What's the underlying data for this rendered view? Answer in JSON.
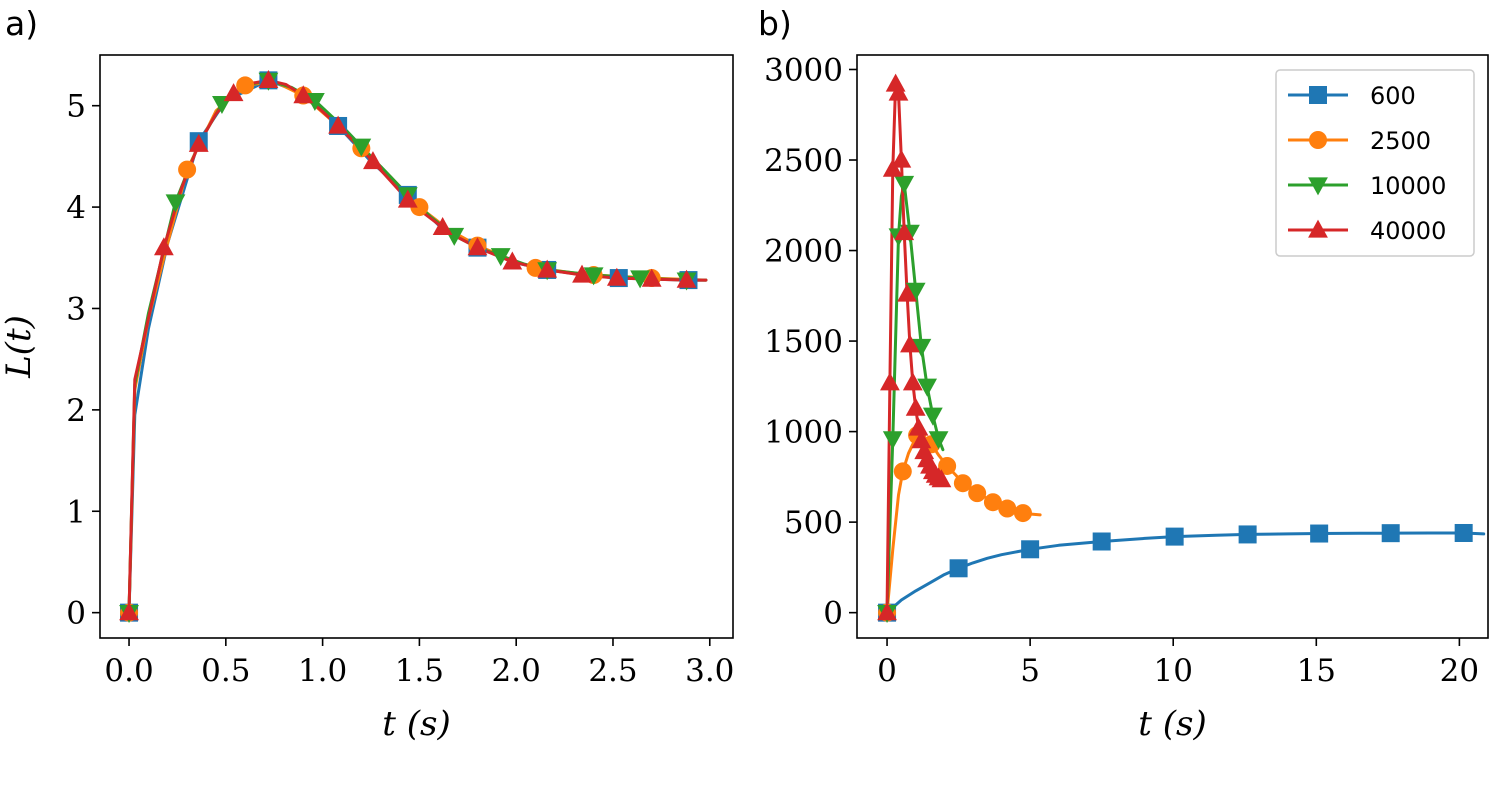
{
  "chart_data": [
    {
      "panel": "a)",
      "type": "line",
      "xlabel": "t (s)",
      "ylabel": "L(t)",
      "xlim": [
        -0.15,
        3.12
      ],
      "ylim": [
        -0.25,
        5.5
      ],
      "xticks": [
        0.0,
        0.5,
        1.0,
        1.5,
        2.0,
        2.5,
        3.0
      ],
      "xtick_labels": [
        "0.0",
        "0.5",
        "1.0",
        "1.5",
        "2.0",
        "2.5",
        "3.0"
      ],
      "yticks": [
        0,
        1,
        2,
        3,
        4,
        5
      ],
      "ytick_labels": [
        "0",
        "1",
        "2",
        "3",
        "4",
        "5"
      ],
      "grid": false,
      "series": [
        {
          "name": "600",
          "color": "#1f77b4",
          "marker": "square",
          "x": [
            0.0,
            0.36,
            0.72,
            1.08,
            1.44,
            1.8,
            2.16,
            2.53,
            2.89
          ],
          "y": [
            0.0,
            4.65,
            5.25,
            4.8,
            4.12,
            3.6,
            3.38,
            3.3,
            3.28
          ],
          "line_x": [
            0.0,
            0.03,
            0.1,
            0.2,
            0.36,
            0.5,
            0.72,
            0.9,
            1.08,
            1.25,
            1.44,
            1.6,
            1.8,
            2.0,
            2.16,
            2.35,
            2.53,
            2.7,
            2.89,
            2.98
          ],
          "line_y": [
            0.0,
            1.95,
            2.8,
            3.65,
            4.65,
            5.05,
            5.25,
            5.12,
            4.8,
            4.45,
            4.12,
            3.82,
            3.6,
            3.45,
            3.38,
            3.33,
            3.3,
            3.29,
            3.28,
            3.28
          ]
        },
        {
          "name": "2500",
          "color": "#ff7f0e",
          "marker": "circle",
          "x": [
            0.0,
            0.3,
            0.6,
            0.9,
            1.2,
            1.5,
            1.8,
            2.1,
            2.4,
            2.7
          ],
          "y": [
            0.0,
            4.37,
            5.2,
            5.1,
            4.58,
            4.0,
            3.62,
            3.4,
            3.33,
            3.3
          ],
          "line_x": [
            0.0,
            0.03,
            0.1,
            0.2,
            0.3,
            0.45,
            0.6,
            0.75,
            0.9,
            1.05,
            1.2,
            1.35,
            1.5,
            1.65,
            1.8,
            2.0,
            2.1,
            2.3,
            2.4,
            2.6,
            2.7,
            2.98
          ],
          "line_y": [
            0.0,
            2.2,
            2.9,
            3.65,
            4.37,
            4.95,
            5.2,
            5.24,
            5.1,
            4.85,
            4.58,
            4.3,
            4.0,
            3.78,
            3.62,
            3.46,
            3.4,
            3.35,
            3.33,
            3.31,
            3.3,
            3.28
          ]
        },
        {
          "name": "10000",
          "color": "#2ca02c",
          "marker": "triangle-down",
          "x": [
            0.0,
            0.24,
            0.48,
            0.72,
            0.96,
            1.2,
            1.44,
            1.68,
            1.92,
            2.16,
            2.4,
            2.64,
            2.88
          ],
          "y": [
            0.0,
            4.05,
            5.02,
            5.25,
            5.05,
            4.6,
            4.12,
            3.72,
            3.52,
            3.38,
            3.33,
            3.3,
            3.28
          ],
          "line_x": [
            0.0,
            0.03,
            0.1,
            0.24,
            0.36,
            0.48,
            0.6,
            0.72,
            0.84,
            0.96,
            1.1,
            1.2,
            1.32,
            1.44,
            1.56,
            1.68,
            1.8,
            1.92,
            2.04,
            2.16,
            2.4,
            2.64,
            2.88,
            2.98
          ],
          "line_y": [
            0.0,
            2.25,
            2.95,
            4.05,
            4.62,
            5.02,
            5.2,
            5.25,
            5.18,
            5.05,
            4.8,
            4.6,
            4.36,
            4.12,
            3.9,
            3.72,
            3.6,
            3.52,
            3.44,
            3.38,
            3.33,
            3.3,
            3.28,
            3.28
          ]
        },
        {
          "name": "40000",
          "color": "#d62728",
          "marker": "triangle-up",
          "x": [
            0.0,
            0.18,
            0.36,
            0.54,
            0.72,
            0.9,
            1.08,
            1.26,
            1.44,
            1.62,
            1.8,
            1.98,
            2.16,
            2.34,
            2.52,
            2.7,
            2.88
          ],
          "y": [
            0.0,
            3.6,
            4.62,
            5.12,
            5.25,
            5.1,
            4.8,
            4.45,
            4.07,
            3.8,
            3.6,
            3.46,
            3.38,
            3.33,
            3.3,
            3.29,
            3.28
          ],
          "line_x": [
            0.0,
            0.03,
            0.1,
            0.18,
            0.27,
            0.36,
            0.45,
            0.54,
            0.63,
            0.72,
            0.81,
            0.9,
            0.99,
            1.08,
            1.17,
            1.26,
            1.35,
            1.44,
            1.53,
            1.62,
            1.71,
            1.8,
            1.89,
            1.98,
            2.07,
            2.16,
            2.34,
            2.52,
            2.7,
            2.88,
            2.98
          ],
          "line_y": [
            0.0,
            2.3,
            2.9,
            3.6,
            4.18,
            4.62,
            4.92,
            5.12,
            5.22,
            5.25,
            5.21,
            5.1,
            4.96,
            4.8,
            4.63,
            4.45,
            4.26,
            4.07,
            3.93,
            3.8,
            3.69,
            3.6,
            3.53,
            3.46,
            3.42,
            3.38,
            3.33,
            3.3,
            3.29,
            3.28,
            3.28
          ]
        }
      ]
    },
    {
      "panel": "b)",
      "type": "line",
      "xlabel": "t (s)",
      "ylabel": "",
      "xlim": [
        -1.05,
        21.0
      ],
      "ylim": [
        -140,
        3080
      ],
      "xticks": [
        0,
        5,
        10,
        15,
        20
      ],
      "xtick_labels": [
        "0",
        "5",
        "10",
        "15",
        "20"
      ],
      "yticks": [
        0,
        500,
        1000,
        1500,
        2000,
        2500,
        3000
      ],
      "ytick_labels": [
        "0",
        "500",
        "1000",
        "1500",
        "2000",
        "2500",
        "3000"
      ],
      "grid": false,
      "legend_loc": "top-right",
      "series": [
        {
          "name": "600",
          "color": "#1f77b4",
          "marker": "square",
          "x": [
            0.0,
            2.5,
            5.0,
            7.5,
            10.05,
            12.6,
            15.1,
            17.6,
            20.15
          ],
          "y": [
            0,
            245,
            350,
            393,
            420,
            432,
            437,
            439,
            440
          ],
          "line_x": [
            0.0,
            0.5,
            1.0,
            1.5,
            2.0,
            2.5,
            3.0,
            3.5,
            4.0,
            5.0,
            6.0,
            7.5,
            9.0,
            10.05,
            11.5,
            12.6,
            14.0,
            15.1,
            16.5,
            17.6,
            19.0,
            20.15,
            20.85
          ],
          "line_y": [
            0,
            70,
            120,
            165,
            210,
            245,
            275,
            300,
            320,
            350,
            372,
            393,
            410,
            420,
            427,
            432,
            435,
            437,
            438,
            439,
            440,
            440,
            435
          ]
        },
        {
          "name": "2500",
          "color": "#ff7f0e",
          "marker": "circle",
          "x": [
            0.0,
            0.55,
            1.05,
            1.55,
            2.1,
            2.65,
            3.15,
            3.7,
            4.2,
            4.75
          ],
          "y": [
            0,
            780,
            980,
            930,
            810,
            715,
            660,
            610,
            575,
            550
          ],
          "line_x": [
            0.0,
            0.2,
            0.4,
            0.55,
            0.75,
            1.05,
            1.3,
            1.55,
            1.8,
            2.1,
            2.4,
            2.65,
            2.9,
            3.15,
            3.45,
            3.7,
            3.95,
            4.2,
            4.5,
            4.75,
            5.0,
            5.35
          ],
          "line_y": [
            0,
            350,
            650,
            780,
            880,
            980,
            960,
            930,
            870,
            810,
            760,
            715,
            685,
            660,
            635,
            610,
            592,
            575,
            560,
            550,
            545,
            540
          ]
        },
        {
          "name": "10000",
          "color": "#2ca02c",
          "marker": "triangle-down",
          "x": [
            0.0,
            0.2,
            0.4,
            0.6,
            0.8,
            1.0,
            1.2,
            1.4,
            1.6,
            1.8
          ],
          "y": [
            0,
            960,
            2080,
            2370,
            2100,
            1780,
            1470,
            1250,
            1090,
            960
          ],
          "line_x": [
            0.0,
            0.2,
            0.4,
            0.5,
            0.6,
            0.8,
            1.0,
            1.2,
            1.4,
            1.6,
            1.8,
            1.95
          ],
          "line_y": [
            0,
            960,
            2080,
            2300,
            2370,
            2100,
            1780,
            1470,
            1250,
            1090,
            960,
            900
          ]
        },
        {
          "name": "40000",
          "color": "#d62728",
          "marker": "triangle-up",
          "x": [
            0.0,
            0.1,
            0.2,
            0.3,
            0.4,
            0.5,
            0.6,
            0.7,
            0.8,
            0.9,
            1.0,
            1.1,
            1.2,
            1.3,
            1.4,
            1.5,
            1.6,
            1.7,
            1.8,
            1.9
          ],
          "y": [
            0,
            1270,
            2450,
            2920,
            2870,
            2500,
            2100,
            1760,
            1480,
            1270,
            1130,
            1020,
            950,
            890,
            845,
            810,
            780,
            760,
            745,
            735
          ],
          "line_x": [
            0.0,
            0.1,
            0.2,
            0.3,
            0.4,
            0.5,
            0.6,
            0.7,
            0.8,
            0.9,
            1.0,
            1.1,
            1.2,
            1.3,
            1.4,
            1.5,
            1.6,
            1.7,
            1.8,
            1.9
          ],
          "line_y": [
            0,
            1270,
            2450,
            2920,
            2870,
            2500,
            2100,
            1760,
            1480,
            1270,
            1130,
            1020,
            950,
            890,
            845,
            810,
            780,
            760,
            745,
            735
          ]
        }
      ]
    }
  ]
}
